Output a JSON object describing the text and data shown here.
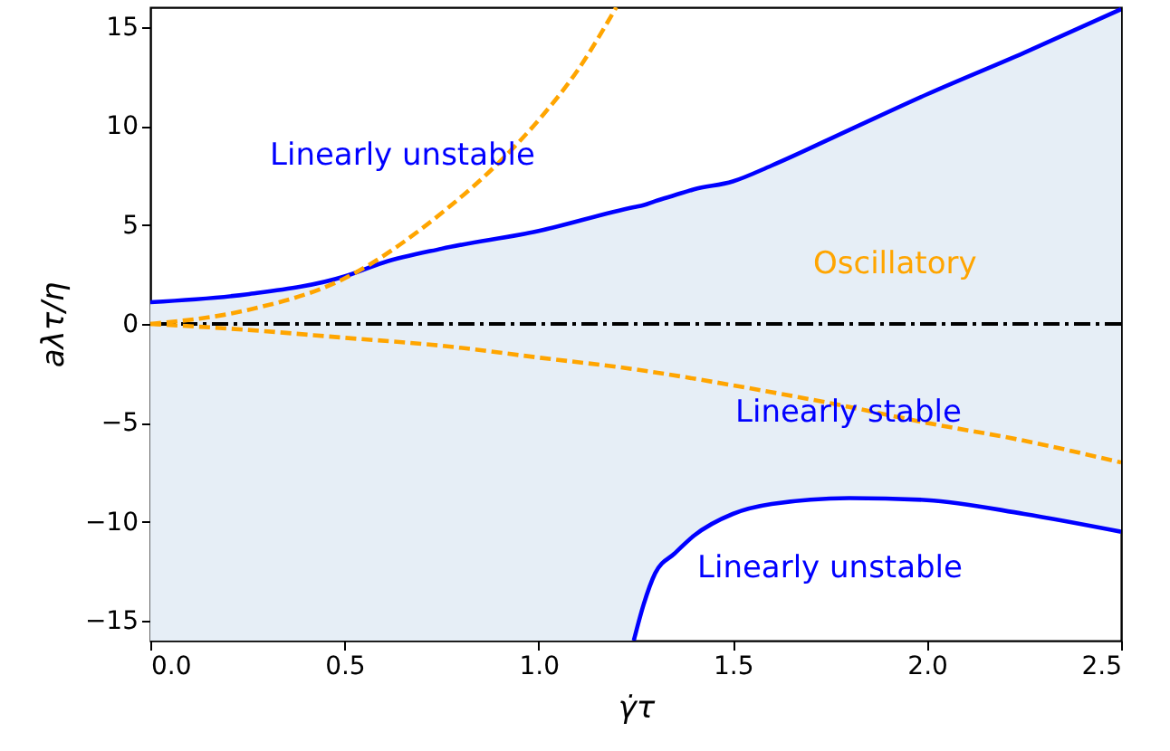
{
  "chart_data": {
    "type": "line",
    "xlabel": "γ̇τ",
    "ylabel": "aλτ/η",
    "xlim": [
      0,
      2.5
    ],
    "ylim": [
      -16,
      16
    ],
    "xticks": [
      {
        "value": 0,
        "label": "0.0"
      },
      {
        "value": 0.5,
        "label": "0.5"
      },
      {
        "value": 1,
        "label": "1.0"
      },
      {
        "value": 1.5,
        "label": "1.5"
      },
      {
        "value": 2,
        "label": "2.0"
      },
      {
        "value": 2.5,
        "label": "2.5"
      }
    ],
    "yticks": [
      -15,
      -10,
      -5,
      0,
      5,
      10,
      15
    ],
    "series": [
      {
        "color": "#0000ff",
        "line_style": "solid",
        "x": [
          0,
          0.25,
          0.5,
          0.6,
          0.75,
          1,
          1.245,
          1.27,
          1.3,
          1.35,
          1.4,
          1.5,
          1.6,
          1.8,
          2,
          2.25,
          2.5
        ],
        "values": [
          1.1,
          1.5,
          2.4,
          3.1,
          3.8,
          4.7,
          5.9,
          6.0,
          6.2,
          6.5,
          6.8,
          7.2,
          8.0,
          9.8,
          11.6,
          13.7,
          15.9
        ],
        "upper": [
          1.1,
          1.5,
          2.4,
          3.1,
          3.8,
          4.7,
          5.9,
          6.0,
          6.2,
          6.5,
          6.8,
          7.2,
          8.0,
          9.8,
          11.6,
          13.7,
          15.9
        ],
        "lower": [
          -16,
          -16,
          -16,
          -16,
          -16,
          -16,
          -16,
          -14.2,
          -12.6,
          -11.6,
          -10.7,
          -9.6,
          -9.1,
          -8.8,
          -8.9,
          -9.6,
          -10.5
        ]
      },
      {
        "color": "#ffa500",
        "line_style": "dashed",
        "x": [
          0,
          0.25,
          0.5,
          0.75,
          0.9,
          1,
          1.1,
          1.2
        ],
        "values": [
          0,
          0.7,
          2.3,
          5.6,
          8.2,
          10.3,
          12.8,
          16
        ]
      },
      {
        "color": "#ffa500",
        "line_style": "dashed",
        "x": [
          0,
          0.25,
          0.5,
          0.75,
          1,
          1.25,
          1.5,
          1.75,
          2,
          2.25,
          2.5
        ],
        "values": [
          0,
          -0.3,
          -0.7,
          -1.1,
          -1.7,
          -2.3,
          -3.1,
          -4.0,
          -5.0,
          -5.9,
          -7.0
        ]
      },
      {
        "color": "#0000ff",
        "line_style": "solid",
        "x": [
          1.245,
          1.27,
          1.3,
          1.35,
          1.4,
          1.5,
          1.6,
          1.8,
          2,
          2.25,
          2.5
        ],
        "values": [
          -16,
          -14.2,
          -12.6,
          -11.6,
          -10.7,
          -9.6,
          -9.1,
          -8.8,
          -8.9,
          -9.6,
          -10.5
        ]
      }
    ],
    "ref_lines": [
      {
        "axis": "y",
        "value": 0,
        "color": "#000000",
        "line_style": "dashdot"
      }
    ],
    "annotations": [
      "Linearly unstable",
      "Oscillatory",
      "Linearly stable",
      "Linearly unstable"
    ]
  }
}
